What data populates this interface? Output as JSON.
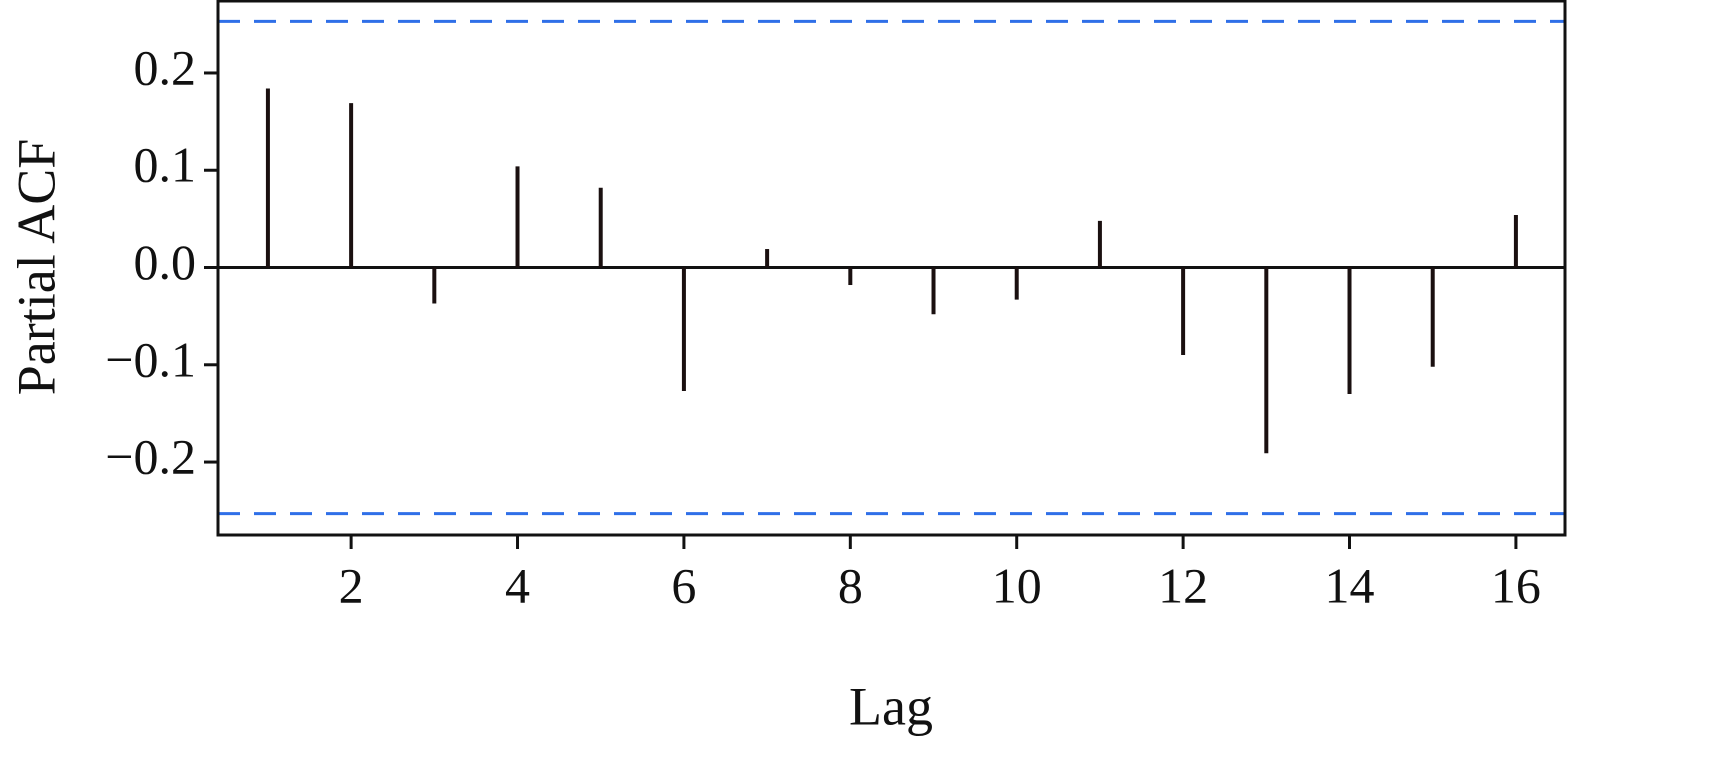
{
  "chart_data": {
    "type": "stem",
    "x_label": "Lag",
    "y_label": "Partial ACF",
    "x": [
      1,
      2,
      3,
      4,
      5,
      6,
      7,
      8,
      9,
      10,
      11,
      12,
      13,
      14,
      15,
      16
    ],
    "values": [
      0.184,
      0.169,
      -0.037,
      0.104,
      0.082,
      -0.127,
      0.019,
      -0.018,
      -0.048,
      -0.033,
      0.048,
      -0.09,
      -0.191,
      -0.13,
      -0.102,
      0.054
    ],
    "color": "#1a1010",
    "conf_lines": [
      0.253,
      -0.253
    ],
    "conf_color": "#2f6fe8",
    "xlim": [
      0.4,
      16.59
    ],
    "xticks": [
      2,
      4,
      6,
      8,
      10,
      12,
      14,
      16
    ],
    "ylim": [
      -0.275,
      0.274
    ],
    "yticks": [
      {
        "value": -0.2,
        "label": "−0.2"
      },
      {
        "value": -0.1,
        "label": "−0.1"
      },
      {
        "value": 0,
        "label": "0.0"
      },
      0.1,
      0.2
    ]
  }
}
